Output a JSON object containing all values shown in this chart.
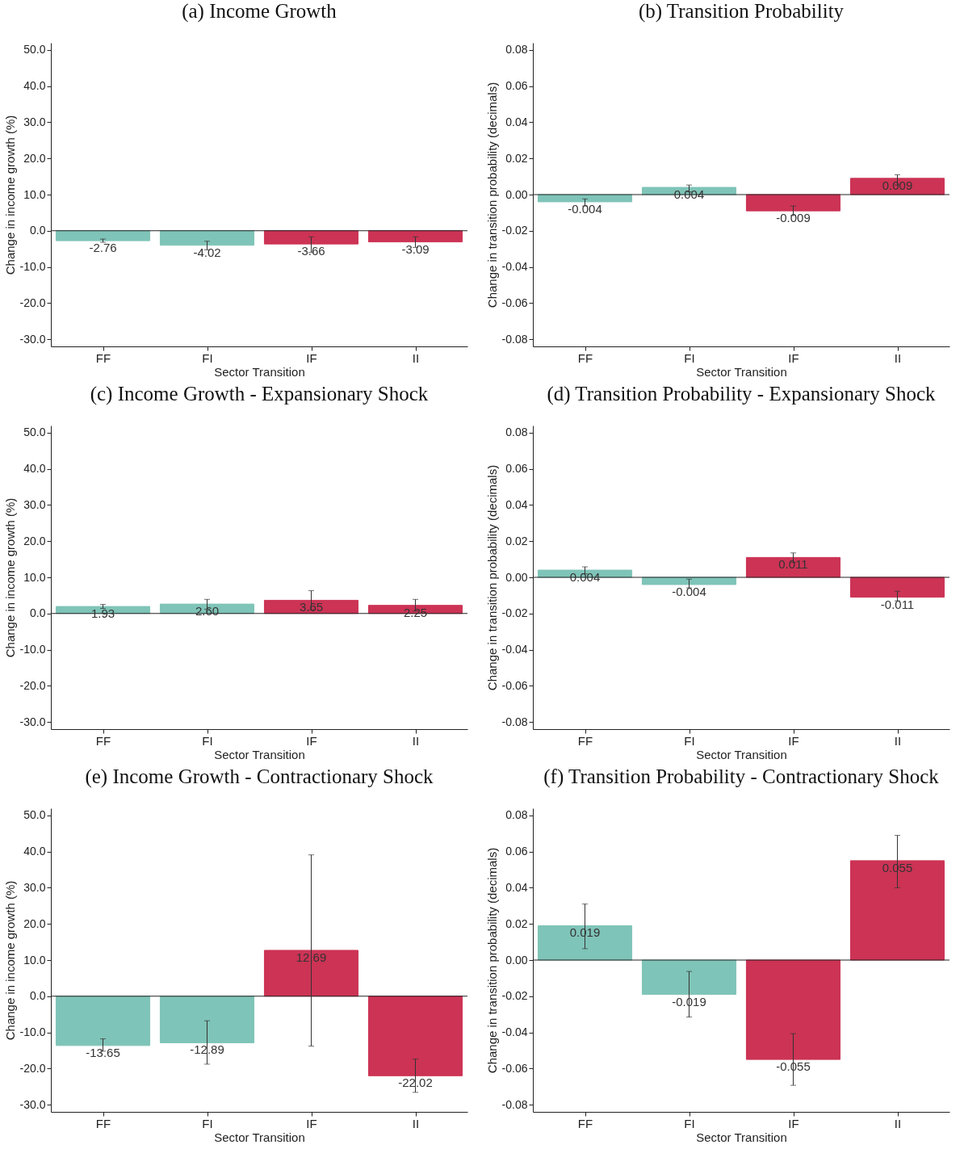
{
  "chart_data": [
    {
      "type": "bar",
      "title": "(a) Income Growth",
      "xlabel": "Sector Transition",
      "ylabel": "Change in income growth (%)",
      "categories": [
        "FF",
        "FI",
        "IF",
        "II"
      ],
      "values": [
        -2.76,
        -4.02,
        -3.66,
        -3.09
      ],
      "colors": [
        "#7fc4b8",
        "#7fc4b8",
        "#cc3355",
        "#cc3355"
      ],
      "value_labels": [
        "-2.76",
        "-4.02",
        "-3.66",
        "-3.09"
      ],
      "errors": [
        [
          -3.2,
          -2.3
        ],
        [
          -5.3,
          -2.9
        ],
        [
          -6.0,
          -1.7
        ],
        [
          -4.6,
          -1.7
        ]
      ],
      "ylim": [
        -32,
        52
      ],
      "yticks": [
        {
          "value": -30,
          "label": "-30.0"
        },
        {
          "value": -20,
          "label": "-20.0"
        },
        {
          "value": -10,
          "label": "-10.0"
        },
        {
          "value": 0,
          "label": "0.0"
        },
        {
          "value": 10,
          "label": "10.0"
        },
        {
          "value": 20,
          "label": "20.0"
        },
        {
          "value": 30,
          "label": "30.0"
        },
        {
          "value": 40,
          "label": "40.0"
        },
        {
          "value": 50,
          "label": "50.0"
        }
      ],
      "ref_lines": [
        {
          "axis": "y",
          "value": 0,
          "label": null
        }
      ],
      "grid": false
    },
    {
      "type": "bar",
      "title": "(b) Transition Probability",
      "xlabel": "Sector Transition",
      "ylabel": "Change in transition probability (decimals)",
      "categories": [
        "FF",
        "FI",
        "IF",
        "II"
      ],
      "values": [
        -0.004,
        0.004,
        -0.009,
        0.009
      ],
      "colors": [
        "#7fc4b8",
        "#7fc4b8",
        "#cc3355",
        "#cc3355"
      ],
      "value_labels": [
        "-0.004",
        "0.004",
        "-0.009",
        "0.009"
      ],
      "errors": [
        [
          -0.0063,
          -0.0024
        ],
        [
          0.0015,
          0.0053
        ],
        [
          -0.0116,
          -0.0063
        ],
        [
          0.0053,
          0.011
        ]
      ],
      "ylim": [
        -0.084,
        0.084
      ],
      "yticks": [
        {
          "value": -0.08,
          "label": "-0.08"
        },
        {
          "value": -0.06,
          "label": "-0.06"
        },
        {
          "value": -0.04,
          "label": "-0.04"
        },
        {
          "value": -0.02,
          "label": "-0.02"
        },
        {
          "value": 0,
          "label": "0.00"
        },
        {
          "value": 0.02,
          "label": "0.02"
        },
        {
          "value": 0.04,
          "label": "0.04"
        },
        {
          "value": 0.06,
          "label": "0.06"
        },
        {
          "value": 0.08,
          "label": "0.08"
        }
      ],
      "ref_lines": [
        {
          "axis": "y",
          "value": 0,
          "label": null
        }
      ],
      "grid": false
    },
    {
      "type": "bar",
      "title": "(c) Income Growth - Expansionary Shock",
      "xlabel": "Sector Transition",
      "ylabel": "Change in income growth (%)",
      "categories": [
        "FF",
        "FI",
        "IF",
        "II"
      ],
      "values": [
        1.93,
        2.6,
        3.65,
        2.25
      ],
      "colors": [
        "#7fc4b8",
        "#7fc4b8",
        "#cc3355",
        "#cc3355"
      ],
      "value_labels": [
        "1.93",
        "2.60",
        "3.65",
        "2.25"
      ],
      "errors": [
        [
          1.4,
          2.5
        ],
        [
          1.2,
          3.9
        ],
        [
          1.0,
          6.3
        ],
        [
          0.7,
          3.9
        ]
      ],
      "ylim": [
        -32,
        52
      ],
      "yticks": [
        {
          "value": -30,
          "label": "-30.0"
        },
        {
          "value": -20,
          "label": "-20.0"
        },
        {
          "value": -10,
          "label": "-10.0"
        },
        {
          "value": 0,
          "label": "0.0"
        },
        {
          "value": 10,
          "label": "10.0"
        },
        {
          "value": 20,
          "label": "20.0"
        },
        {
          "value": 30,
          "label": "30.0"
        },
        {
          "value": 40,
          "label": "40.0"
        },
        {
          "value": 50,
          "label": "50.0"
        }
      ],
      "ref_lines": [
        {
          "axis": "y",
          "value": 0,
          "label": null
        }
      ],
      "grid": false
    },
    {
      "type": "bar",
      "title": "(d) Transition Probability - Expansionary Shock",
      "xlabel": "Sector Transition",
      "ylabel": "Change in transition probability (decimals)",
      "categories": [
        "FF",
        "FI",
        "IF",
        "II"
      ],
      "values": [
        0.004,
        -0.004,
        0.011,
        -0.011
      ],
      "colors": [
        "#7fc4b8",
        "#7fc4b8",
        "#cc3355",
        "#cc3355"
      ],
      "value_labels": [
        "0.004",
        "-0.004",
        "0.011",
        "-0.011"
      ],
      "errors": [
        [
          0.0019,
          0.0058
        ],
        [
          -0.0058,
          -0.001
        ],
        [
          0.0082,
          0.0135
        ],
        [
          -0.013,
          -0.0077
        ]
      ],
      "ylim": [
        -0.084,
        0.084
      ],
      "yticks": [
        {
          "value": -0.08,
          "label": "-0.08"
        },
        {
          "value": -0.06,
          "label": "-0.06"
        },
        {
          "value": -0.04,
          "label": "-0.04"
        },
        {
          "value": -0.02,
          "label": "-0.02"
        },
        {
          "value": 0,
          "label": "0.00"
        },
        {
          "value": 0.02,
          "label": "0.02"
        },
        {
          "value": 0.04,
          "label": "0.04"
        },
        {
          "value": 0.06,
          "label": "0.06"
        },
        {
          "value": 0.08,
          "label": "0.08"
        }
      ],
      "ref_lines": [
        {
          "axis": "y",
          "value": 0,
          "label": null
        }
      ],
      "grid": false
    },
    {
      "type": "bar",
      "title": "(e) Income Growth - Contractionary Shock",
      "xlabel": "Sector Transition",
      "ylabel": "Change in income growth (%)",
      "categories": [
        "FF",
        "FI",
        "IF",
        "II"
      ],
      "values": [
        -13.65,
        -12.89,
        12.69,
        -22.02
      ],
      "colors": [
        "#7fc4b8",
        "#7fc4b8",
        "#cc3355",
        "#cc3355"
      ],
      "value_labels": [
        "-13.65",
        "-12.89",
        "12.69",
        "-22.02"
      ],
      "errors": [
        [
          -15.2,
          -11.8
        ],
        [
          -18.8,
          -6.8
        ],
        [
          -13.8,
          39.1
        ],
        [
          -26.6,
          -17.4
        ]
      ],
      "ylim": [
        -32,
        52
      ],
      "yticks": [
        {
          "value": -30,
          "label": "-30.0"
        },
        {
          "value": -20,
          "label": "-20.0"
        },
        {
          "value": -10,
          "label": "-10.0"
        },
        {
          "value": 0,
          "label": "0.0"
        },
        {
          "value": 10,
          "label": "10.0"
        },
        {
          "value": 20,
          "label": "20.0"
        },
        {
          "value": 30,
          "label": "30.0"
        },
        {
          "value": 40,
          "label": "40.0"
        },
        {
          "value": 50,
          "label": "50.0"
        }
      ],
      "ref_lines": [
        {
          "axis": "y",
          "value": 0,
          "label": null
        }
      ],
      "grid": false
    },
    {
      "type": "bar",
      "title": "(f) Transition Probability - Contractionary Shock",
      "xlabel": "Sector Transition",
      "ylabel": "Change in transition probability (decimals)",
      "categories": [
        "FF",
        "FI",
        "IF",
        "II"
      ],
      "values": [
        0.019,
        -0.019,
        -0.055,
        0.055
      ],
      "colors": [
        "#7fc4b8",
        "#7fc4b8",
        "#cc3355",
        "#cc3355"
      ],
      "value_labels": [
        "0.019",
        "-0.019",
        "-0.055",
        "0.055"
      ],
      "errors": [
        [
          0.0063,
          0.031
        ],
        [
          -0.0315,
          -0.0063
        ],
        [
          -0.0693,
          -0.0407
        ],
        [
          0.04,
          0.069
        ]
      ],
      "ylim": [
        -0.084,
        0.084
      ],
      "yticks": [
        {
          "value": -0.08,
          "label": "-0.08"
        },
        {
          "value": -0.06,
          "label": "-0.06"
        },
        {
          "value": -0.04,
          "label": "-0.04"
        },
        {
          "value": -0.02,
          "label": "-0.02"
        },
        {
          "value": 0,
          "label": "0.00"
        },
        {
          "value": 0.02,
          "label": "0.02"
        },
        {
          "value": 0.04,
          "label": "0.04"
        },
        {
          "value": 0.06,
          "label": "0.06"
        },
        {
          "value": 0.08,
          "label": "0.08"
        }
      ],
      "ref_lines": [
        {
          "axis": "y",
          "value": 0,
          "label": null
        }
      ],
      "grid": false
    }
  ]
}
